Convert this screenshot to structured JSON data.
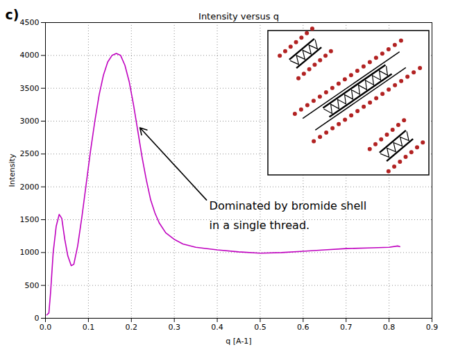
{
  "chart_data": {
    "type": "line",
    "panel_label": "c)",
    "title": "Intensity versus q",
    "x_label": "q [A-1]",
    "y_label": "Intensity",
    "color": "#bf00bf",
    "grid": true,
    "x": [
      0.003,
      0.008,
      0.012,
      0.018,
      0.025,
      0.032,
      0.038,
      0.045,
      0.052,
      0.06,
      0.066,
      0.075,
      0.085,
      0.095,
      0.105,
      0.115,
      0.125,
      0.135,
      0.145,
      0.155,
      0.165,
      0.175,
      0.185,
      0.195,
      0.205,
      0.215,
      0.225,
      0.235,
      0.245,
      0.255,
      0.265,
      0.28,
      0.3,
      0.32,
      0.35,
      0.4,
      0.45,
      0.5,
      0.55,
      0.6,
      0.65,
      0.7,
      0.75,
      0.8,
      0.82,
      0.825
    ],
    "values": [
      50,
      80,
      400,
      1000,
      1400,
      1580,
      1520,
      1200,
      950,
      800,
      820,
      1100,
      1550,
      2050,
      2550,
      3000,
      3400,
      3700,
      3900,
      4000,
      4030,
      4000,
      3850,
      3600,
      3250,
      2850,
      2450,
      2100,
      1800,
      1600,
      1450,
      1300,
      1200,
      1130,
      1080,
      1040,
      1010,
      990,
      1000,
      1020,
      1040,
      1060,
      1070,
      1080,
      1100,
      1090
    ],
    "xlim": [
      0,
      0.9
    ],
    "ylim": [
      0,
      4500
    ],
    "xticks": [
      {
        "value": 0,
        "label": "0.0"
      },
      0.1,
      0.2,
      0.3,
      0.4,
      0.5,
      0.6,
      0.7,
      0.8,
      0.9
    ],
    "yticks": [
      0,
      500,
      1000,
      1500,
      2000,
      2500,
      3000,
      3500,
      4000,
      4500
    ],
    "annotations": [
      {
        "text": "Dominated by bromide shell in a single thread.",
        "xy": [
          0.22,
          2900
        ],
        "xytext": [
          0.375,
          1800
        ]
      }
    ]
  }
}
